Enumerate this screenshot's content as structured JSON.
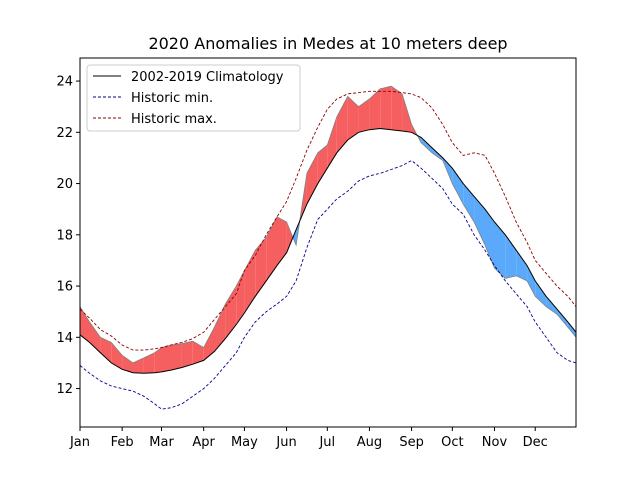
{
  "chart_data": {
    "type": "line",
    "title": "2020 Anomalies in Medes at 10 meters deep",
    "xlabel": "",
    "ylabel": "",
    "x_unit": "day of year",
    "xlim": [
      1,
      366
    ],
    "ylim": [
      10.5,
      24.9
    ],
    "x_ticks": [
      {
        "label": "Jan",
        "day": 1
      },
      {
        "label": "Feb",
        "day": 32
      },
      {
        "label": "Mar",
        "day": 61
      },
      {
        "label": "Apr",
        "day": 92
      },
      {
        "label": "May",
        "day": 122
      },
      {
        "label": "Jun",
        "day": 153
      },
      {
        "label": "Jul",
        "day": 183
      },
      {
        "label": "Aug",
        "day": 214
      },
      {
        "label": "Sep",
        "day": 245
      },
      {
        "label": "Oct",
        "day": 275
      },
      {
        "label": "Nov",
        "day": 306
      },
      {
        "label": "Dec",
        "day": 336
      }
    ],
    "y_ticks": [
      12,
      14,
      16,
      18,
      20,
      22,
      24
    ],
    "grid": false,
    "legend": {
      "placement": "upper-left",
      "entries": [
        {
          "label": "2002-2019 Climatology",
          "color": "#000000",
          "style": "solid"
        },
        {
          "label": "Historic min.",
          "color": "#00008b",
          "style": "dashed"
        },
        {
          "label": "Historic max.",
          "color": "#8b0000",
          "style": "dashed"
        }
      ]
    },
    "fill_colors": {
      "above_climatology": "#f65f5f",
      "below_climatology": "#5aa9fa",
      "series_line": "#808080"
    },
    "x": [
      1,
      8,
      16,
      24,
      32,
      40,
      48,
      56,
      61,
      68,
      76,
      84,
      92,
      100,
      108,
      116,
      122,
      130,
      138,
      146,
      153,
      160,
      168,
      176,
      183,
      190,
      198,
      206,
      214,
      222,
      230,
      238,
      245,
      252,
      260,
      268,
      275,
      283,
      291,
      299,
      306,
      314,
      322,
      330,
      336,
      344,
      352,
      360,
      366
    ],
    "series": [
      {
        "name": "2002-2019 Climatology",
        "values": [
          14.1,
          13.8,
          13.4,
          13.0,
          12.75,
          12.62,
          12.6,
          12.62,
          12.65,
          12.72,
          12.82,
          12.95,
          13.1,
          13.45,
          13.95,
          14.5,
          14.95,
          15.6,
          16.2,
          16.8,
          17.3,
          18.2,
          19.2,
          20.0,
          20.6,
          21.2,
          21.7,
          22.0,
          22.1,
          22.15,
          22.1,
          22.05,
          22.0,
          21.8,
          21.4,
          21.0,
          20.6,
          20.0,
          19.5,
          19.0,
          18.5,
          18.0,
          17.4,
          16.8,
          16.2,
          15.6,
          15.1,
          14.6,
          14.2
        ]
      },
      {
        "name": "Historic min.",
        "values": [
          12.9,
          12.6,
          12.3,
          12.1,
          12.0,
          11.9,
          11.7,
          11.4,
          11.2,
          11.25,
          11.4,
          11.7,
          12.0,
          12.4,
          12.9,
          13.4,
          14.0,
          14.6,
          15.0,
          15.3,
          15.6,
          16.2,
          17.5,
          18.6,
          19.0,
          19.4,
          19.7,
          20.1,
          20.3,
          20.4,
          20.55,
          20.7,
          20.9,
          20.6,
          20.2,
          19.8,
          19.2,
          18.8,
          18.0,
          17.4,
          16.8,
          16.2,
          15.7,
          15.2,
          14.6,
          14.0,
          13.4,
          13.1,
          13.0
        ]
      },
      {
        "name": "Historic max.",
        "values": [
          15.1,
          14.75,
          14.3,
          14.05,
          13.7,
          13.5,
          13.5,
          13.55,
          13.6,
          13.7,
          13.8,
          13.95,
          14.2,
          14.7,
          15.2,
          15.7,
          16.6,
          17.2,
          18.0,
          18.7,
          19.3,
          20.2,
          21.3,
          22.2,
          22.9,
          23.3,
          23.5,
          23.55,
          23.6,
          23.6,
          23.6,
          23.55,
          23.5,
          23.35,
          22.95,
          22.3,
          21.6,
          21.1,
          21.2,
          21.1,
          20.4,
          19.5,
          18.5,
          17.7,
          17.0,
          16.5,
          16.0,
          15.6,
          15.2
        ]
      },
      {
        "name": "2020",
        "values": [
          15.2,
          14.6,
          14.0,
          13.8,
          13.3,
          13.0,
          13.2,
          13.4,
          13.6,
          13.7,
          13.75,
          13.85,
          13.6,
          14.4,
          15.3,
          16.0,
          16.6,
          17.4,
          17.9,
          18.7,
          18.5,
          17.6,
          20.4,
          21.2,
          21.5,
          22.6,
          23.4,
          23.0,
          23.3,
          23.7,
          23.8,
          23.5,
          22.3,
          21.6,
          21.2,
          20.9,
          20.0,
          19.2,
          18.5,
          17.6,
          16.7,
          16.3,
          16.4,
          16.2,
          15.6,
          15.2,
          14.9,
          14.4,
          14.0
        ]
      }
    ]
  }
}
